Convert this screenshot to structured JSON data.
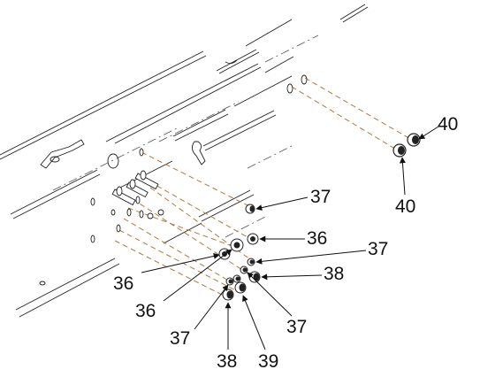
{
  "callouts": {
    "c40a": "40",
    "c40b": "40",
    "c37a": "37",
    "c36a": "36",
    "c37b": "37",
    "c38a": "38",
    "c36b": "36",
    "c36c": "36",
    "c37c": "37",
    "c37d": "37",
    "c38b": "38",
    "c39": "39"
  },
  "colors": {
    "line": "#222222",
    "dash": "#b07a3a"
  }
}
